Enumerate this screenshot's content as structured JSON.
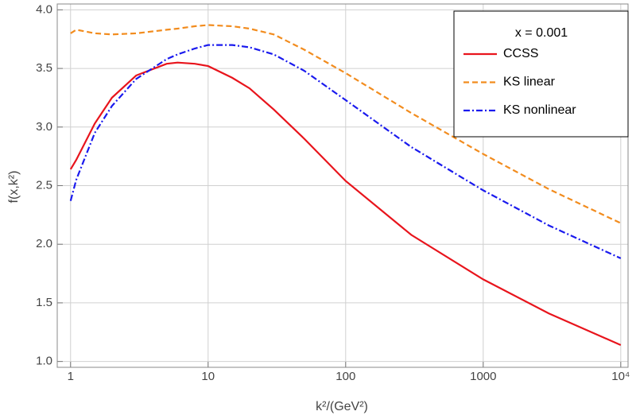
{
  "chart_data": {
    "type": "line",
    "xlabel": "k²/(GeV²)",
    "ylabel": "f(x,k²)",
    "xscale": "log",
    "grid": true,
    "legend_title": "x = 0.001",
    "legend_position": "upper right",
    "x": [
      1,
      1.1,
      1.5,
      2,
      3,
      5,
      6,
      8,
      10,
      15,
      20,
      30,
      50,
      100,
      300,
      1000,
      3000,
      10000
    ],
    "series": [
      {
        "name": "CCSS",
        "color": "#e8141c",
        "dash": "solid",
        "values": [
          2.64,
          2.72,
          3.03,
          3.25,
          3.44,
          3.54,
          3.55,
          3.54,
          3.52,
          3.42,
          3.33,
          3.15,
          2.9,
          2.54,
          2.08,
          1.7,
          1.41,
          1.14
        ]
      },
      {
        "name": "KS linear",
        "color": "#f28c1e",
        "dash": "dashed",
        "values": [
          3.8,
          3.83,
          3.8,
          3.79,
          3.8,
          3.83,
          3.84,
          3.86,
          3.87,
          3.86,
          3.84,
          3.79,
          3.66,
          3.46,
          3.12,
          2.77,
          2.47,
          2.18
        ]
      },
      {
        "name": "KS nonlinear",
        "color": "#1a1aee",
        "dash": "dashdot",
        "values": [
          2.37,
          2.55,
          2.95,
          3.18,
          3.41,
          3.58,
          3.62,
          3.67,
          3.7,
          3.7,
          3.68,
          3.62,
          3.48,
          3.23,
          2.83,
          2.46,
          2.16,
          1.88
        ]
      }
    ],
    "xlim": [
      0.8,
      11300
    ],
    "xticks": [
      1,
      10,
      100,
      1000,
      {
        "value": 10000,
        "label": "10⁴"
      }
    ],
    "ylim": [
      0.95,
      4.05
    ],
    "yticks": [
      {
        "value": 1,
        "label": "1.0"
      },
      {
        "value": 1.5,
        "label": "1.5"
      },
      {
        "value": 2,
        "label": "2.0"
      },
      {
        "value": 2.5,
        "label": "2.5"
      },
      {
        "value": 3,
        "label": "3.0"
      },
      {
        "value": 3.5,
        "label": "3.5"
      },
      {
        "value": 4,
        "label": "4.0"
      }
    ]
  }
}
